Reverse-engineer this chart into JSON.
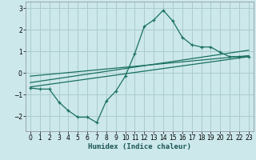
{
  "xlabel": "Humidex (Indice chaleur)",
  "bg_color": "#cce8eb",
  "grid_color": "#aacccc",
  "line_color": "#1a7060",
  "xlim": [
    -0.5,
    23.5
  ],
  "ylim": [
    -2.7,
    3.3
  ],
  "xticks": [
    0,
    1,
    2,
    3,
    4,
    5,
    6,
    7,
    8,
    9,
    10,
    11,
    12,
    13,
    14,
    15,
    16,
    17,
    18,
    19,
    20,
    21,
    22,
    23
  ],
  "yticks": [
    -2,
    -1,
    0,
    1,
    2,
    3
  ],
  "curve_x": [
    0,
    1,
    2,
    3,
    4,
    5,
    6,
    7,
    8,
    9,
    10,
    11,
    12,
    13,
    14,
    15,
    16,
    17,
    18,
    19,
    20,
    21,
    22,
    23
  ],
  "curve_y": [
    -0.7,
    -0.75,
    -0.75,
    -1.35,
    -1.75,
    -2.05,
    -2.05,
    -2.3,
    -1.3,
    -0.85,
    -0.15,
    0.9,
    2.15,
    2.45,
    2.9,
    2.4,
    1.65,
    1.3,
    1.2,
    1.2,
    0.95,
    0.75,
    0.75,
    0.75
  ],
  "line1_x": [
    0,
    23
  ],
  "line1_y": [
    -0.65,
    0.75
  ],
  "line2_x": [
    0,
    23
  ],
  "line2_y": [
    -0.45,
    1.05
  ],
  "line3_x": [
    0,
    23
  ],
  "line3_y": [
    -0.15,
    0.8
  ]
}
